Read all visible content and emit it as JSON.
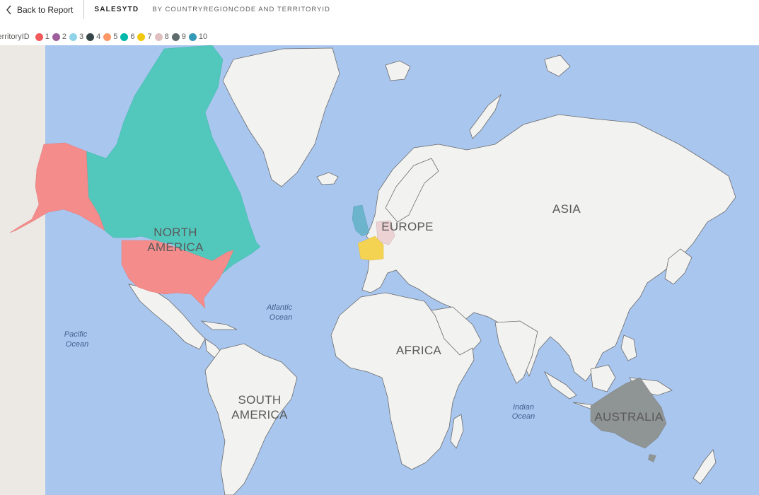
{
  "header": {
    "back_label": "Back to Report",
    "title": "SALESYTD",
    "subtitle": "BY COUNTRYREGIONCODE AND TERRITORYID"
  },
  "legend": {
    "title": "TerritoryID",
    "items": [
      {
        "label": "1",
        "color": "#f2595b"
      },
      {
        "label": "2",
        "color": "#9e5e9b"
      },
      {
        "label": "3",
        "color": "#8fd3e8"
      },
      {
        "label": "4",
        "color": "#374649"
      },
      {
        "label": "5",
        "color": "#fe9666"
      },
      {
        "label": "6",
        "color": "#01b8aa"
      },
      {
        "label": "7",
        "color": "#f2c80f"
      },
      {
        "label": "8",
        "color": "#dfbfbf"
      },
      {
        "label": "9",
        "color": "#5f6b6d"
      },
      {
        "label": "10",
        "color": "#3599b8"
      }
    ]
  },
  "map": {
    "colors": {
      "ocean": "#a9c6ef",
      "land": "#f2f2f0",
      "left_strip": "#ece9e4",
      "territory_1": "#f58c8c",
      "territory_6": "#52c8bd",
      "territory_7": "#f5d352",
      "territory_8": "#ecd2d3",
      "territory_9": "#8f9494",
      "territory_10": "#6cb4cc"
    },
    "labels": {
      "north_america_1": "NORTH",
      "north_america_2": "AMERICA",
      "south_america_1": "SOUTH",
      "south_america_2": "AMERICA",
      "europe": "EUROPE",
      "asia": "ASIA",
      "africa": "AFRICA",
      "australia": "AUSTRALIA",
      "atlantic_1": "Atlantic",
      "atlantic_2": "Ocean",
      "pacific_1": "Pacific",
      "pacific_2": "Ocean",
      "indian_1": "Indian",
      "indian_2": "Ocean"
    }
  }
}
